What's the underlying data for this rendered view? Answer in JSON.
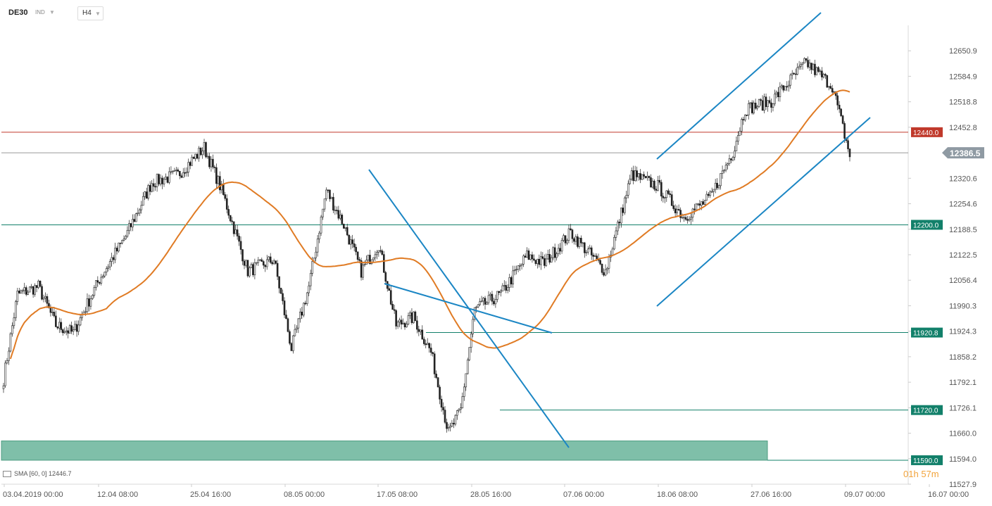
{
  "header": {
    "symbol": "DE30",
    "market": "IND",
    "timeframe": "H4"
  },
  "indicator_label": "SMA  [60,  0]  12446.7",
  "countdown": {
    "hours": "01",
    "h": "h",
    "minutes": "57",
    "m": "m"
  },
  "colors": {
    "resistance_line": "#c0392b",
    "support_line": "#12806a",
    "current_price_line": "#999999",
    "zone_fill": "#7fbfa9",
    "trendline": "#1b86c4",
    "sma": "#e07b24",
    "candle_up": "#ffffff",
    "candle_down": "#222222"
  },
  "chart_data": {
    "type": "candlestick",
    "instrument": "DE30",
    "timeframe": "H4",
    "y_tick_labels": [
      "12650.9",
      "12584.9",
      "12518.8",
      "12452.8",
      "12320.6",
      "12254.6",
      "12188.5",
      "12122.5",
      "12056.4",
      "11990.3",
      "11924.3",
      "11858.2",
      "11792.1",
      "11726.1",
      "11660.0",
      "11594.0",
      "11527.9"
    ],
    "x_tick_labels": [
      "03.04.2019  00:00",
      "12.04  08:00",
      "25.04  16:00",
      "08.05  00:00",
      "17.05  08:00",
      "28.05  16:00",
      "07.06  00:00",
      "18.06  08:00",
      "27.06  16:00",
      "09.07  00:00",
      "16.07  00:00"
    ],
    "ylim": [
      11527.9,
      12716.9
    ],
    "horizontal_levels": [
      {
        "value": 12440.0,
        "label": "12440.0",
        "style": "resistance"
      },
      {
        "value": 12200.0,
        "label": "12200.0",
        "style": "support"
      },
      {
        "value": 11920.8,
        "label": "11920.8",
        "style": "support"
      },
      {
        "value": 11720.0,
        "label": "11720.0",
        "style": "support"
      },
      {
        "value": 11590.0,
        "label": "11590.0",
        "style": "support"
      }
    ],
    "current_price": {
      "value": 12386.5,
      "label": "12386.5"
    },
    "support_zone": {
      "low": 11590.0,
      "high": 11640.0
    },
    "sma": {
      "period": 60,
      "last": 12446.7
    },
    "anchors": [
      {
        "i": 0,
        "p": 11800
      },
      {
        "i": 8,
        "p": 12020
      },
      {
        "i": 20,
        "p": 12040
      },
      {
        "i": 30,
        "p": 11940
      },
      {
        "i": 40,
        "p": 11920
      },
      {
        "i": 55,
        "p": 12060
      },
      {
        "i": 70,
        "p": 12170
      },
      {
        "i": 85,
        "p": 12310
      },
      {
        "i": 100,
        "p": 12330
      },
      {
        "i": 115,
        "p": 12400
      },
      {
        "i": 125,
        "p": 12290
      },
      {
        "i": 140,
        "p": 12080
      },
      {
        "i": 155,
        "p": 12110
      },
      {
        "i": 165,
        "p": 11880
      },
      {
        "i": 175,
        "p": 12040
      },
      {
        "i": 185,
        "p": 12290
      },
      {
        "i": 195,
        "p": 12200
      },
      {
        "i": 205,
        "p": 12080
      },
      {
        "i": 215,
        "p": 12150
      },
      {
        "i": 225,
        "p": 11940
      },
      {
        "i": 235,
        "p": 11960
      },
      {
        "i": 245,
        "p": 11870
      },
      {
        "i": 255,
        "p": 11660
      },
      {
        "i": 262,
        "p": 11720
      },
      {
        "i": 270,
        "p": 11980
      },
      {
        "i": 285,
        "p": 12020
      },
      {
        "i": 300,
        "p": 12120
      },
      {
        "i": 310,
        "p": 12100
      },
      {
        "i": 325,
        "p": 12180
      },
      {
        "i": 345,
        "p": 12080
      },
      {
        "i": 360,
        "p": 12330
      },
      {
        "i": 375,
        "p": 12300
      },
      {
        "i": 390,
        "p": 12220
      },
      {
        "i": 405,
        "p": 12270
      },
      {
        "i": 418,
        "p": 12390
      },
      {
        "i": 425,
        "p": 12500
      },
      {
        "i": 440,
        "p": 12520
      },
      {
        "i": 460,
        "p": 12620
      },
      {
        "i": 475,
        "p": 12560
      },
      {
        "i": 485,
        "p": 12380
      }
    ]
  }
}
